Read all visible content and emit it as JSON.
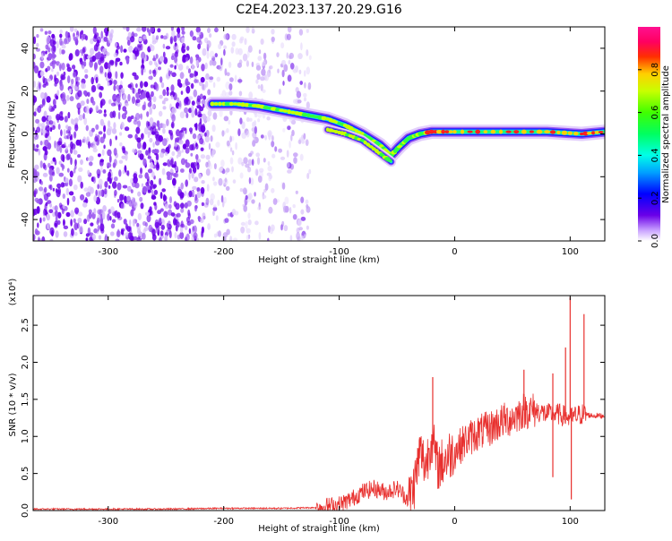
{
  "title": "C2E4.2023.137.20.29.G16",
  "colors": {
    "snr_line": "#e8302e",
    "spectrogram_low": "#6a00e8",
    "axis": "#000000"
  },
  "chart_data": [
    {
      "type": "heatmap",
      "name": "spectrogram",
      "xlabel": "Height of straight line (km)",
      "ylabel": "Frequency (Hz)",
      "xlim": [
        -365,
        130
      ],
      "ylim": [
        -50,
        50
      ],
      "xticks": [
        -300,
        -200,
        -100,
        0,
        100
      ],
      "yticks": [
        -40,
        -20,
        0,
        20,
        40
      ],
      "xtick_labels": [
        "-300",
        "-200",
        "-100",
        "0",
        "100"
      ],
      "ytick_labels": [
        "-40",
        "-20",
        "0",
        "20",
        "40"
      ],
      "colorbar": {
        "label": "Normalized spectral amplitude",
        "range": [
          0.0,
          1.0
        ],
        "ticks": [
          0.0,
          0.2,
          0.4,
          0.6,
          0.8
        ],
        "tick_labels": [
          "0.0",
          "0.2",
          "0.4",
          "0.6",
          "0.8"
        ],
        "colormap": "gist_ncar",
        "position": "right"
      },
      "ridge": {
        "x": [
          -210,
          -190,
          -170,
          -150,
          -130,
          -110,
          -95,
          -80,
          -65,
          -55,
          -48,
          -40,
          -30,
          -20,
          0,
          40,
          80,
          110,
          130
        ],
        "y": [
          14,
          14,
          13,
          11,
          9,
          7,
          4,
          0,
          -5,
          -10,
          -6,
          -2,
          0,
          1,
          1,
          1,
          1,
          0,
          1
        ]
      },
      "secondary_ridge": {
        "x": [
          -110,
          -95,
          -80,
          -65,
          -55
        ],
        "y": [
          2,
          0,
          -3,
          -9,
          -13
        ]
      },
      "noise_regions": [
        {
          "x_range": [
            -365,
            -215
          ],
          "density": "dense"
        },
        {
          "x_range": [
            -215,
            -125
          ],
          "density": "sparse"
        }
      ]
    },
    {
      "type": "line",
      "name": "snr",
      "xlabel": "Height of straight line (km)",
      "ylabel": "SNR (10 * v/v)",
      "y_multiplier": "(x10⁴)",
      "xlim": [
        -365,
        130
      ],
      "ylim": [
        0,
        2.9
      ],
      "xticks": [
        -300,
        -200,
        -100,
        0,
        100
      ],
      "yticks": [
        0.0,
        0.5,
        1.0,
        1.5,
        2.0,
        2.5
      ],
      "xtick_labels": [
        "-300",
        "-200",
        "-100",
        "0",
        "100"
      ],
      "ytick_labels": [
        "0.0",
        "0.5",
        "1.0",
        "1.5",
        "2.0",
        "2.5"
      ],
      "series": [
        {
          "color": "#e8302e",
          "x": [
            -365,
            -300,
            -250,
            -200,
            -150,
            -120,
            -100,
            -90,
            -80,
            -70,
            -60,
            -50,
            -40,
            -35,
            -30,
            -25,
            -20,
            -15,
            -10,
            -5,
            0,
            10,
            20,
            30,
            40,
            50,
            60,
            70,
            80,
            90,
            100,
            110,
            120,
            130
          ],
          "y": [
            0.02,
            0.02,
            0.02,
            0.03,
            0.03,
            0.04,
            0.08,
            0.15,
            0.25,
            0.3,
            0.25,
            0.3,
            0.15,
            0.35,
            0.8,
            0.6,
            1.0,
            0.6,
            0.65,
            0.75,
            0.8,
            0.95,
            1.05,
            1.1,
            1.2,
            1.25,
            1.35,
            1.35,
            1.3,
            1.3,
            1.25,
            1.3,
            1.28,
            1.28
          ]
        }
      ],
      "spikes": [
        {
          "x": -19,
          "y": 1.8
        },
        {
          "x": 100,
          "y": 2.88
        },
        {
          "x": 112,
          "y": 2.65
        },
        {
          "x": 96,
          "y": 2.2
        },
        {
          "x": 60,
          "y": 1.9
        },
        {
          "x": 85,
          "y": 1.85
        },
        {
          "x": 101,
          "y": 0.15
        },
        {
          "x": 85,
          "y": 0.45
        }
      ]
    }
  ]
}
